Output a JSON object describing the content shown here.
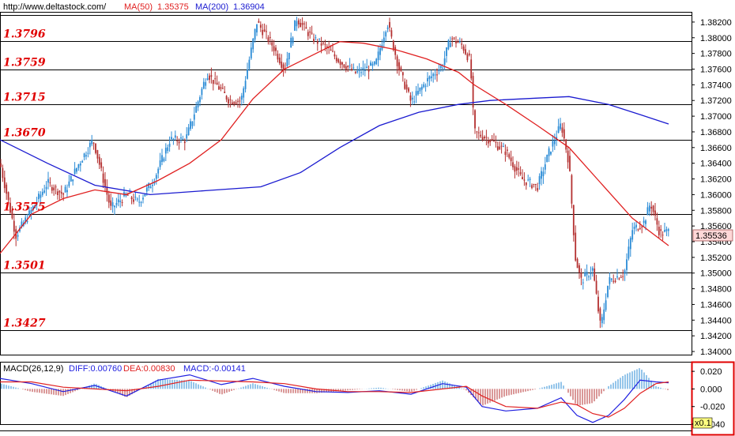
{
  "header": {
    "url": "http://www.deltastock.com/",
    "ma50_label": "MA(50)",
    "ma50_value": "1.35375",
    "ma200_label": "MA(200)",
    "ma200_value": "1.36904"
  },
  "macd_header": {
    "label": "MACD(26,12,9)",
    "diff": "DIFF:0.00760",
    "dea": "DEA:0.00830",
    "macd": "MACD:-0.00141"
  },
  "current_price": "1.35536",
  "macd_scale_badge": "x0.1",
  "colors": {
    "candle_up": "#2a8bd6",
    "candle_down": "#b43030",
    "ma50": "#e02020",
    "ma200": "#1a1ad0",
    "level_text": "#e00000",
    "price_box": "#ffd8d8",
    "diff_line": "#2020e0",
    "dea_line": "#e02020",
    "hist_up": "#2a8bd6",
    "hist_down": "#b43030"
  },
  "chart_data": {
    "type": "candlestick",
    "y_range": [
      1.3396,
      1.3832
    ],
    "y_ticks": [
      "1.38200",
      "1.38000",
      "1.37800",
      "1.37600",
      "1.37400",
      "1.37200",
      "1.37000",
      "1.36800",
      "1.36600",
      "1.36400",
      "1.36200",
      "1.36000",
      "1.35800",
      "1.35600",
      "1.35400",
      "1.35200",
      "1.35000",
      "1.34800",
      "1.34600",
      "1.34400",
      "1.34200",
      "1.34000"
    ],
    "levels": [
      {
        "label": "1.3796",
        "value": 1.3796
      },
      {
        "label": "1.3759",
        "value": 1.3759
      },
      {
        "label": "1.3715",
        "value": 1.3715
      },
      {
        "label": "1.3670",
        "value": 1.367
      },
      {
        "label": "1.3575",
        "value": 1.3575
      },
      {
        "label": "1.3501",
        "value": 1.3501
      },
      {
        "label": "1.3427",
        "value": 1.3427
      }
    ],
    "upper_line": 1.3829,
    "price_path": [
      [
        0,
        1.364
      ],
      [
        20,
        1.3548
      ],
      [
        40,
        1.358
      ],
      [
        60,
        1.3615
      ],
      [
        80,
        1.36
      ],
      [
        100,
        1.364
      ],
      [
        118,
        1.367
      ],
      [
        140,
        1.3582
      ],
      [
        160,
        1.36
      ],
      [
        175,
        1.359
      ],
      [
        195,
        1.362
      ],
      [
        215,
        1.367
      ],
      [
        235,
        1.367
      ],
      [
        262,
        1.3755
      ],
      [
        290,
        1.372
      ],
      [
        305,
        1.372
      ],
      [
        325,
        1.382
      ],
      [
        345,
        1.379
      ],
      [
        360,
        1.376
      ],
      [
        375,
        1.3825
      ],
      [
        395,
        1.38
      ],
      [
        410,
        1.379
      ],
      [
        430,
        1.377
      ],
      [
        450,
        1.3755
      ],
      [
        475,
        1.3765
      ],
      [
        490,
        1.382
      ],
      [
        505,
        1.376
      ],
      [
        520,
        1.3718
      ],
      [
        540,
        1.3745
      ],
      [
        560,
        1.3765
      ],
      [
        570,
        1.38
      ],
      [
        585,
        1.379
      ],
      [
        595,
        1.377
      ],
      [
        600,
        1.368
      ],
      [
        620,
        1.367
      ],
      [
        640,
        1.3655
      ],
      [
        660,
        1.362
      ],
      [
        680,
        1.361
      ],
      [
        695,
        1.3655
      ],
      [
        710,
        1.369
      ],
      [
        720,
        1.364
      ],
      [
        728,
        1.352
      ],
      [
        735,
        1.349
      ],
      [
        750,
        1.3505
      ],
      [
        760,
        1.343
      ],
      [
        770,
        1.349
      ],
      [
        790,
        1.35
      ],
      [
        800,
        1.3555
      ],
      [
        815,
        1.3565
      ],
      [
        823,
        1.359
      ],
      [
        835,
        1.355
      ],
      [
        846,
        1.3553
      ]
    ],
    "ma50": [
      [
        0,
        1.3525
      ],
      [
        40,
        1.3575
      ],
      [
        80,
        1.3595
      ],
      [
        120,
        1.3606
      ],
      [
        160,
        1.36
      ],
      [
        200,
        1.3618
      ],
      [
        240,
        1.364
      ],
      [
        280,
        1.367
      ],
      [
        320,
        1.3722
      ],
      [
        360,
        1.376
      ],
      [
        400,
        1.378
      ],
      [
        430,
        1.3795
      ],
      [
        460,
        1.3793
      ],
      [
        500,
        1.3785
      ],
      [
        540,
        1.3773
      ],
      [
        580,
        1.3756
      ],
      [
        600,
        1.374
      ],
      [
        640,
        1.3715
      ],
      [
        680,
        1.3688
      ],
      [
        720,
        1.366
      ],
      [
        760,
        1.3615
      ],
      [
        800,
        1.357
      ],
      [
        846,
        1.3535
      ]
    ],
    "ma200": [
      [
        0,
        1.367
      ],
      [
        60,
        1.364
      ],
      [
        120,
        1.3612
      ],
      [
        190,
        1.36
      ],
      [
        260,
        1.3605
      ],
      [
        330,
        1.361
      ],
      [
        380,
        1.3628
      ],
      [
        430,
        1.366
      ],
      [
        480,
        1.3688
      ],
      [
        530,
        1.3705
      ],
      [
        580,
        1.3715
      ],
      [
        620,
        1.372
      ],
      [
        680,
        1.3723
      ],
      [
        720,
        1.3725
      ],
      [
        770,
        1.3715
      ],
      [
        810,
        1.3702
      ],
      [
        846,
        1.369
      ]
    ],
    "macd": {
      "y_range": [
        -0.04,
        0.03
      ],
      "y_ticks": [
        "0.020",
        "0.000",
        "-0.020",
        "-0.040"
      ],
      "diff": [
        [
          0,
          0.012
        ],
        [
          40,
          0.006
        ],
        [
          80,
          -0.003
        ],
        [
          120,
          0.004
        ],
        [
          160,
          -0.008
        ],
        [
          200,
          0.01
        ],
        [
          240,
          0.016
        ],
        [
          280,
          0.005
        ],
        [
          320,
          0.012
        ],
        [
          360,
          0.003
        ],
        [
          400,
          -0.003
        ],
        [
          440,
          -0.004
        ],
        [
          480,
          -0.002
        ],
        [
          520,
          -0.006
        ],
        [
          560,
          0.006
        ],
        [
          590,
          0.002
        ],
        [
          610,
          -0.02
        ],
        [
          640,
          -0.025
        ],
        [
          680,
          -0.022
        ],
        [
          710,
          -0.01
        ],
        [
          730,
          -0.03
        ],
        [
          750,
          -0.038
        ],
        [
          770,
          -0.03
        ],
        [
          790,
          -0.012
        ],
        [
          810,
          0.01
        ],
        [
          830,
          0.008
        ],
        [
          846,
          0.007
        ]
      ],
      "dea": [
        [
          0,
          0.008
        ],
        [
          40,
          0.008
        ],
        [
          80,
          0.002
        ],
        [
          120,
          0.0
        ],
        [
          160,
          -0.002
        ],
        [
          200,
          0.003
        ],
        [
          240,
          0.01
        ],
        [
          280,
          0.009
        ],
        [
          320,
          0.008
        ],
        [
          360,
          0.006
        ],
        [
          400,
          0.0
        ],
        [
          440,
          -0.003
        ],
        [
          480,
          -0.003
        ],
        [
          520,
          -0.004
        ],
        [
          560,
          0.0
        ],
        [
          590,
          0.003
        ],
        [
          610,
          -0.008
        ],
        [
          640,
          -0.02
        ],
        [
          680,
          -0.022
        ],
        [
          710,
          -0.015
        ],
        [
          730,
          -0.018
        ],
        [
          750,
          -0.028
        ],
        [
          770,
          -0.032
        ],
        [
          790,
          -0.022
        ],
        [
          810,
          -0.005
        ],
        [
          830,
          0.006
        ],
        [
          846,
          0.008
        ]
      ]
    }
  }
}
